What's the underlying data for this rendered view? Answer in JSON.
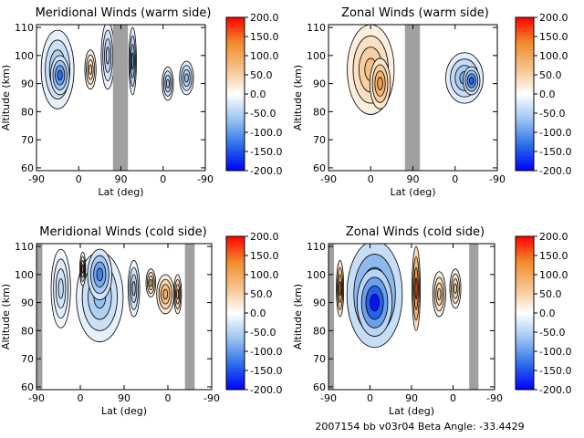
{
  "footer": {
    "text": "2007154 bb v03r04   Beta Angle: -33.4429"
  },
  "colorbar": {
    "ticks": [
      "200.0",
      "150.0",
      "100.0",
      "50.0",
      "0.0",
      "-50.0",
      "-100.0",
      "-150.0",
      "-200.0"
    ],
    "range": [
      -200,
      200
    ],
    "colors": [
      "#0000ff",
      "#2b6fe8",
      "#9cc4f0",
      "#ffffff",
      "#f6c28a",
      "#f08c2c",
      "#ff0000"
    ]
  },
  "chart_data": [
    {
      "type": "heatmap",
      "title": "Meridional Winds (warm side)",
      "xlabel": "Lat (deg)",
      "ylabel": "Altitude (km)",
      "xticks": [
        "-90",
        "0",
        "90",
        "0",
        "-90"
      ],
      "yticks": [
        "60",
        "70",
        "80",
        "90",
        "100",
        "110"
      ],
      "ylim": [
        59,
        111
      ],
      "gray_bands_x": [
        [
          73,
          105
        ]
      ],
      "blobs": [
        {
          "x": -45,
          "y": 95,
          "rx": 35,
          "ry": 14,
          "v": -70
        },
        {
          "x": -40,
          "y": 93,
          "rx": 20,
          "ry": 7,
          "v": -130
        },
        {
          "x": 25,
          "y": 95,
          "rx": 12,
          "ry": 7,
          "v": 50
        },
        {
          "x": 62,
          "y": 100,
          "rx": 14,
          "ry": 12,
          "v": -60
        },
        {
          "x": 115,
          "y": 98,
          "rx": 8,
          "ry": 12,
          "v": -90
        },
        {
          "x": 190,
          "y": 90,
          "rx": 12,
          "ry": 6,
          "v": -60
        },
        {
          "x": 230,
          "y": 92,
          "rx": 15,
          "ry": 6,
          "v": -70
        }
      ]
    },
    {
      "type": "heatmap",
      "title": "Zonal Winds (warm side)",
      "xlabel": "Lat (deg)",
      "ylabel": "Altitude (km)",
      "xticks": [
        "-90",
        "0",
        "90",
        "0",
        "-90"
      ],
      "yticks": [
        "60",
        "70",
        "80",
        "90",
        "100",
        "110"
      ],
      "ylim": [
        59,
        111
      ],
      "gray_bands_x": [
        [
          73,
          105
        ]
      ],
      "blobs": [
        {
          "x": 0,
          "y": 95,
          "rx": 50,
          "ry": 16,
          "v": 70
        },
        {
          "x": 20,
          "y": 90,
          "rx": 22,
          "ry": 9,
          "v": 110
        },
        {
          "x": 200,
          "y": 92,
          "rx": 40,
          "ry": 9,
          "v": -80
        },
        {
          "x": 215,
          "y": 91,
          "rx": 18,
          "ry": 5,
          "v": -140
        }
      ]
    },
    {
      "type": "heatmap",
      "title": "Meridional Winds (cold side)",
      "xlabel": "Lat (deg)",
      "ylabel": "Altitude (km)",
      "xticks": [
        "-90",
        "0",
        "90",
        "0",
        "-90"
      ],
      "yticks": [
        "60",
        "70",
        "80",
        "90",
        "100",
        "110"
      ],
      "ylim": [
        59,
        111
      ],
      "gray_bands_x": [
        [
          -90,
          -78
        ],
        [
          215,
          235
        ]
      ],
      "blobs": [
        {
          "x": 40,
          "y": 92,
          "rx": 48,
          "ry": 16,
          "v": -70
        },
        {
          "x": 40,
          "y": 100,
          "rx": 25,
          "ry": 9,
          "v": -120
        },
        {
          "x": -40,
          "y": 95,
          "rx": 20,
          "ry": 14,
          "v": -40
        },
        {
          "x": 5,
          "y": 102,
          "rx": 6,
          "ry": 6,
          "v": 40
        },
        {
          "x": 110,
          "y": 95,
          "rx": 12,
          "ry": 10,
          "v": -60
        },
        {
          "x": 145,
          "y": 97,
          "rx": 10,
          "ry": 5,
          "v": 60
        },
        {
          "x": 175,
          "y": 93,
          "rx": 18,
          "ry": 7,
          "v": 90
        },
        {
          "x": 200,
          "y": 93,
          "rx": 8,
          "ry": 7,
          "v": 80
        }
      ]
    },
    {
      "type": "heatmap",
      "title": "Zonal Winds (cold side)",
      "xlabel": "Lat (deg)",
      "ylabel": "Altitude (km)",
      "xticks": [
        "-90",
        "0",
        "90",
        "0",
        "-90"
      ],
      "yticks": [
        "60",
        "70",
        "80",
        "90",
        "100",
        "110"
      ],
      "ylim": [
        59,
        111
      ],
      "gray_bands_x": [
        [
          -90,
          -78
        ],
        [
          215,
          235
        ]
      ],
      "blobs": [
        {
          "x": 10,
          "y": 93,
          "rx": 60,
          "ry": 19,
          "v": -150
        },
        {
          "x": 10,
          "y": 90,
          "rx": 38,
          "ry": 12,
          "v": -190
        },
        {
          "x": -65,
          "y": 95,
          "rx": 8,
          "ry": 10,
          "v": 120
        },
        {
          "x": 100,
          "y": 95,
          "rx": 9,
          "ry": 15,
          "v": 160
        },
        {
          "x": 150,
          "y": 93,
          "rx": 14,
          "ry": 8,
          "v": 60
        },
        {
          "x": 185,
          "y": 95,
          "rx": 12,
          "ry": 7,
          "v": 50
        }
      ]
    }
  ]
}
